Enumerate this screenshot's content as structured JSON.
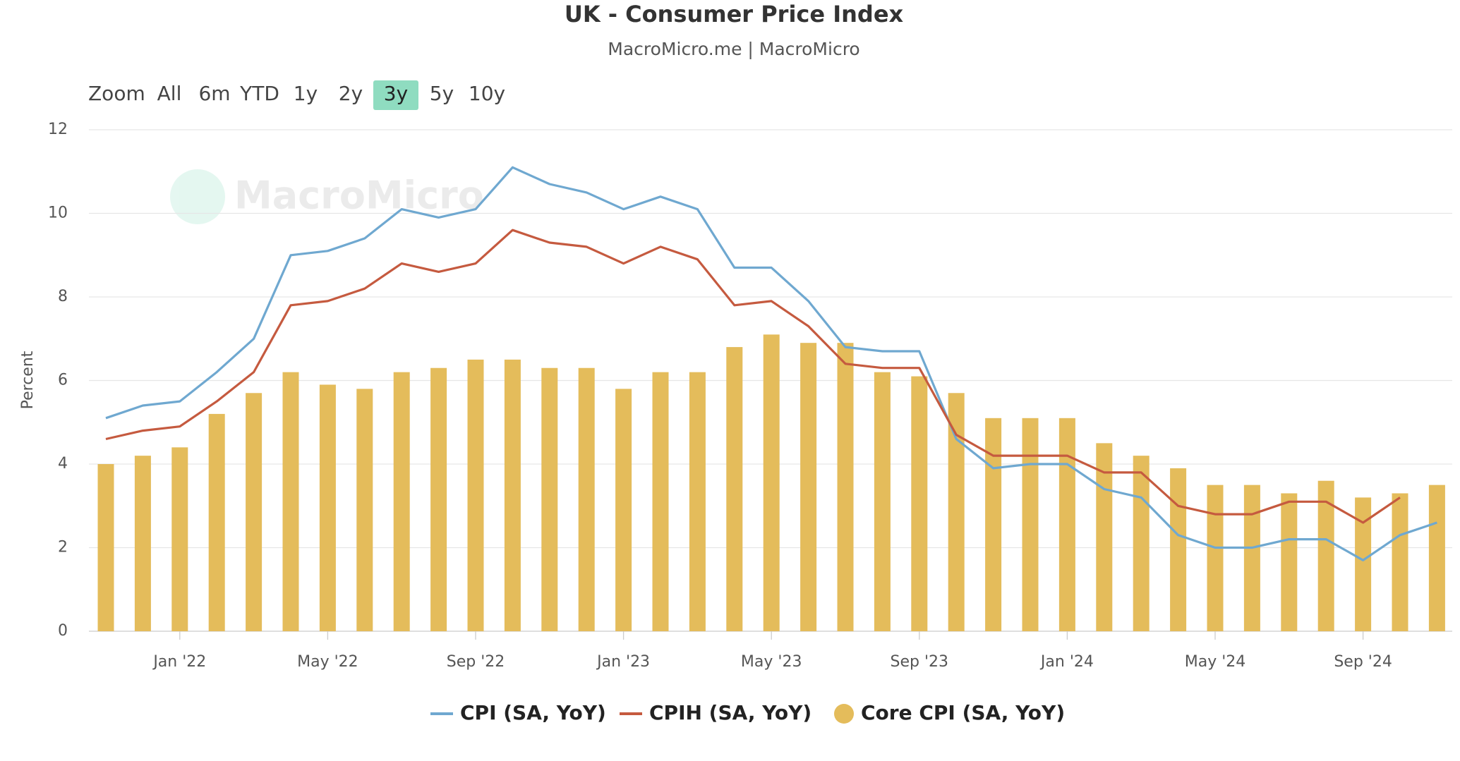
{
  "chart_data": {
    "type": "line",
    "title": "UK - Consumer Price Index",
    "subtitle": "MacroMicro.me | MacroMicro",
    "watermark": "MacroMicro",
    "zoom": {
      "label": "Zoom",
      "buttons": [
        "All",
        "6m",
        "YTD",
        "1y",
        "2y",
        "3y",
        "5y",
        "10y"
      ],
      "selected": "3y"
    },
    "y_label": "Percent",
    "categories": [
      null,
      null,
      "Jan '22",
      null,
      null,
      null,
      "May '22",
      null,
      null,
      null,
      "Sep '22",
      null,
      null,
      null,
      "Jan '23",
      null,
      null,
      null,
      "May '23",
      null,
      null,
      null,
      "Sep '23",
      null,
      null,
      null,
      "Jan '24",
      null,
      null,
      null,
      "May '24",
      null,
      null,
      null,
      "Sep '24",
      null,
      null
    ],
    "series": [
      {
        "name": "CPI (SA, YoY)",
        "color": "#6fa8d0",
        "type": "line",
        "values": [
          5.1,
          5.4,
          5.5,
          6.2,
          7.0,
          9.0,
          9.1,
          9.4,
          10.1,
          9.9,
          10.1,
          11.1,
          10.7,
          10.5,
          10.1,
          10.4,
          10.1,
          8.7,
          8.7,
          7.9,
          6.8,
          6.7,
          6.7,
          4.6,
          3.9,
          4.0,
          4.0,
          3.4,
          3.2,
          2.3,
          2.0,
          2.0,
          2.2,
          2.2,
          1.7,
          2.3,
          2.6
        ]
      },
      {
        "name": "CPIH (SA, YoY)",
        "color": "#c55a3f",
        "type": "line",
        "values": [
          4.6,
          4.8,
          4.9,
          5.5,
          6.2,
          7.8,
          7.9,
          8.2,
          8.8,
          8.6,
          8.8,
          9.6,
          9.3,
          9.2,
          8.8,
          9.2,
          8.9,
          7.8,
          7.9,
          7.3,
          6.4,
          6.3,
          6.3,
          4.7,
          4.2,
          4.2,
          4.2,
          3.8,
          3.8,
          3.0,
          2.8,
          2.8,
          3.1,
          3.1,
          2.6,
          3.2,
          null
        ]
      },
      {
        "name": "Core CPI (SA, YoY)",
        "color": "#e4bc5b",
        "type": "bar",
        "values": [
          4.0,
          4.2,
          4.4,
          5.2,
          5.7,
          6.2,
          5.9,
          5.8,
          6.2,
          6.3,
          6.5,
          6.5,
          6.3,
          6.3,
          5.8,
          6.2,
          6.2,
          6.8,
          7.1,
          6.9,
          6.9,
          6.2,
          6.1,
          5.7,
          5.1,
          5.1,
          5.1,
          4.5,
          4.2,
          3.9,
          3.5,
          3.5,
          3.3,
          3.6,
          3.2,
          3.3,
          3.5
        ]
      }
    ],
    "ylim": [
      0,
      12
    ],
    "yticks": [
      0,
      2,
      4,
      6,
      8,
      10,
      12
    ],
    "grid": true
  }
}
